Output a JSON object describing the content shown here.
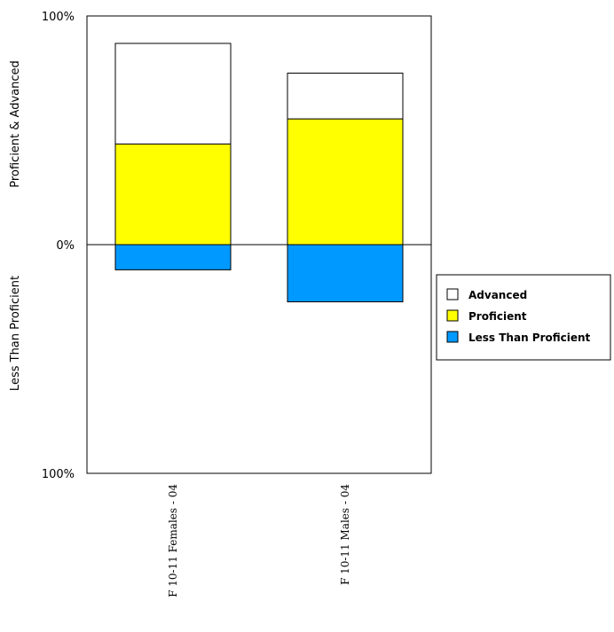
{
  "chart_data": {
    "type": "bar",
    "stacked": "diverging",
    "categories": [
      "F 10-11 Females - 04",
      "F 10-11 Males - 04"
    ],
    "series": [
      {
        "name": "Advanced",
        "values": [
          44,
          20
        ],
        "color": "#ffffff",
        "direction": "up"
      },
      {
        "name": "Proficient",
        "values": [
          44,
          55
        ],
        "color": "#ffff00",
        "direction": "up"
      },
      {
        "name": "Less Than Proficient",
        "values": [
          11,
          25
        ],
        "color": "#0099ff",
        "direction": "down"
      }
    ],
    "legend_order": [
      "Advanced",
      "Proficient",
      "Less Than Proficient"
    ],
    "ylabel_top": "Proficient & Advanced",
    "ylabel_bottom": "Less Than Proficient",
    "y_ticks": [
      "100%",
      "0%",
      "100%"
    ],
    "ylim": [
      -100,
      100
    ],
    "grid": false,
    "legend_position": "right"
  }
}
